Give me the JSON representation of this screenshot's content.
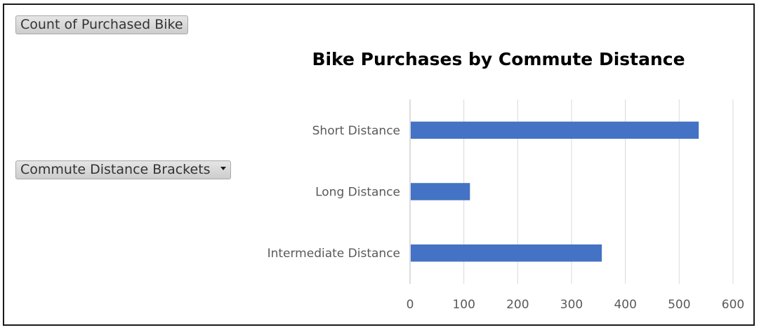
{
  "pivot_fields": {
    "values_field": "Count of Purchased Bike",
    "axis_field": "Commute Distance Brackets"
  },
  "chart_data": {
    "type": "bar",
    "orientation": "horizontal",
    "title": "Bike Purchases by Commute Distance",
    "categories": [
      "Short Distance",
      "Long Distance",
      "Intermediate Distance"
    ],
    "values": [
      535,
      110,
      355
    ],
    "xlim": [
      0,
      600
    ],
    "xticks": [
      0,
      100,
      200,
      300,
      400,
      500,
      600
    ],
    "grid": true,
    "legend": "none",
    "bar_color": "#4472C4",
    "gridline_color": "#d9d9d9"
  }
}
